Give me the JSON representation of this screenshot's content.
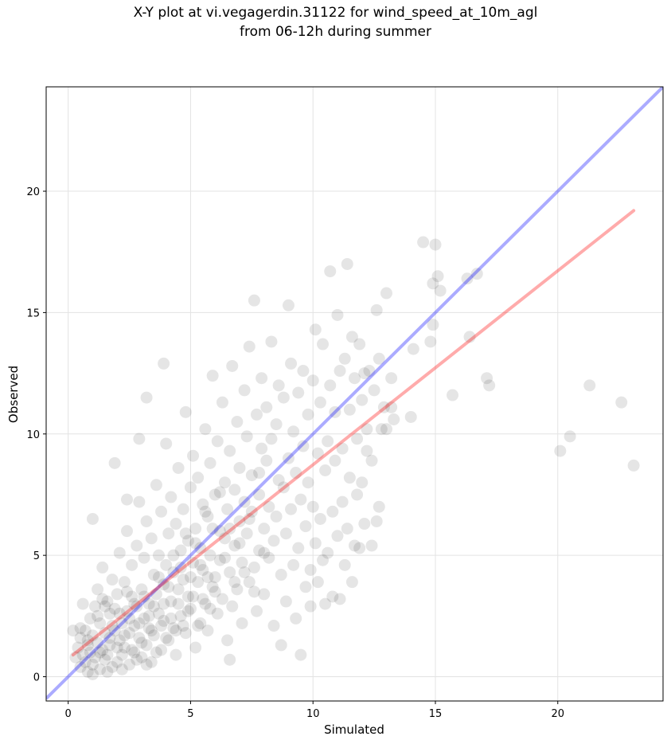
{
  "chart_data": {
    "type": "scatter",
    "title": "X-Y plot at vi.vegagerdin.31122 for wind_speed_at_10m_agl",
    "subtitle": "from 06-12h during summer",
    "xlabel": "Simulated",
    "ylabel": "Observed",
    "xlim": [
      -0.9,
      24.3
    ],
    "ylim": [
      -1.0,
      24.3
    ],
    "x_ticks": [
      0,
      5,
      10,
      15,
      20
    ],
    "y_ticks": [
      0,
      5,
      10,
      15,
      20
    ],
    "grid": true,
    "colors": {
      "points": "#000000",
      "identity_line": "#0000ff",
      "regression_line": "#ff0000"
    },
    "identity_line": {
      "x": [
        -0.9,
        24.3
      ],
      "y": [
        -0.9,
        24.3
      ]
    },
    "regression_line": {
      "x": [
        0.2,
        23.1
      ],
      "y": [
        0.9,
        19.2
      ]
    },
    "points": [
      [
        0.3,
        0.8
      ],
      [
        0.4,
        1.2
      ],
      [
        0.5,
        0.4
      ],
      [
        0.5,
        1.6
      ],
      [
        0.6,
        0.9
      ],
      [
        0.7,
        0.6
      ],
      [
        0.7,
        1.9
      ],
      [
        0.8,
        1.3
      ],
      [
        0.8,
        0.2
      ],
      [
        0.9,
        2.4
      ],
      [
        0.9,
        1.0
      ],
      [
        1.0,
        0.5
      ],
      [
        1.0,
        1.7
      ],
      [
        1.1,
        2.9
      ],
      [
        1.1,
        0.8
      ],
      [
        1.2,
        1.4
      ],
      [
        1.2,
        3.6
      ],
      [
        1.3,
        0.3
      ],
      [
        1.3,
        2.2
      ],
      [
        1.4,
        1.1
      ],
      [
        1.4,
        4.5
      ],
      [
        1.5,
        0.7
      ],
      [
        1.5,
        1.8
      ],
      [
        1.6,
        3.1
      ],
      [
        1.6,
        0.9
      ],
      [
        1.7,
        2.6
      ],
      [
        1.7,
        1.3
      ],
      [
        1.8,
        0.4
      ],
      [
        1.8,
        4.0
      ],
      [
        1.9,
        1.9
      ],
      [
        1.9,
        2.8
      ],
      [
        2.0,
        0.6
      ],
      [
        2.0,
        3.4
      ],
      [
        2.1,
        1.5
      ],
      [
        2.1,
        5.1
      ],
      [
        2.2,
        2.2
      ],
      [
        2.2,
        0.9
      ],
      [
        2.3,
        3.9
      ],
      [
        2.3,
        1.2
      ],
      [
        2.4,
        2.7
      ],
      [
        2.4,
        6.0
      ],
      [
        2.5,
        0.5
      ],
      [
        2.5,
        1.8
      ],
      [
        2.6,
        3.3
      ],
      [
        2.6,
        4.6
      ],
      [
        2.7,
        2.1
      ],
      [
        2.7,
        1.0
      ],
      [
        2.8,
        5.4
      ],
      [
        2.8,
        2.9
      ],
      [
        2.9,
        1.6
      ],
      [
        2.9,
        7.2
      ],
      [
        3.0,
        3.6
      ],
      [
        3.0,
        0.8
      ],
      [
        3.1,
        2.4
      ],
      [
        3.1,
        4.9
      ],
      [
        3.2,
        1.3
      ],
      [
        3.2,
        6.4
      ],
      [
        3.3,
        3.0
      ],
      [
        3.3,
        2.0
      ],
      [
        3.4,
        5.7
      ],
      [
        3.4,
        0.6
      ],
      [
        3.5,
        4.2
      ],
      [
        3.5,
        1.7
      ],
      [
        3.6,
        3.4
      ],
      [
        3.6,
        7.9
      ],
      [
        3.7,
        2.6
      ],
      [
        3.7,
        5.0
      ],
      [
        3.8,
        1.1
      ],
      [
        3.8,
        6.8
      ],
      [
        3.9,
        3.8
      ],
      [
        3.9,
        2.3
      ],
      [
        4.0,
        4.6
      ],
      [
        4.0,
        9.6
      ],
      [
        4.1,
        1.5
      ],
      [
        4.1,
        5.9
      ],
      [
        4.2,
        3.1
      ],
      [
        4.2,
        7.4
      ],
      [
        4.3,
        2.0
      ],
      [
        4.3,
        4.3
      ],
      [
        4.4,
        6.3
      ],
      [
        4.4,
        0.9
      ],
      [
        4.5,
        3.6
      ],
      [
        4.5,
        8.6
      ],
      [
        4.6,
        5.2
      ],
      [
        4.6,
        2.5
      ],
      [
        4.7,
        4.0
      ],
      [
        4.7,
        6.9
      ],
      [
        4.8,
        1.8
      ],
      [
        4.8,
        10.9
      ],
      [
        4.9,
        3.3
      ],
      [
        4.9,
        5.6
      ],
      [
        5.0,
        7.8
      ],
      [
        5.0,
        2.8
      ],
      [
        5.1,
        4.7
      ],
      [
        5.1,
        9.1
      ],
      [
        5.2,
        1.2
      ],
      [
        5.2,
        6.1
      ],
      [
        5.3,
        3.9
      ],
      [
        5.3,
        8.2
      ],
      [
        5.4,
        2.2
      ],
      [
        5.4,
        5.3
      ],
      [
        5.5,
        7.1
      ],
      [
        5.5,
        4.4
      ],
      [
        5.6,
        10.2
      ],
      [
        5.6,
        3.0
      ],
      [
        5.7,
        6.6
      ],
      [
        5.7,
        1.9
      ],
      [
        5.8,
        8.8
      ],
      [
        5.8,
        5.0
      ],
      [
        5.9,
        3.7
      ],
      [
        5.9,
        12.4
      ],
      [
        6.0,
        7.5
      ],
      [
        6.0,
        4.1
      ],
      [
        6.1,
        2.6
      ],
      [
        6.1,
        9.7
      ],
      [
        6.2,
        6.0
      ],
      [
        6.2,
        4.8
      ],
      [
        6.3,
        11.3
      ],
      [
        6.3,
        3.2
      ],
      [
        6.4,
        8.0
      ],
      [
        6.4,
        5.7
      ],
      [
        6.5,
        1.5
      ],
      [
        6.5,
        6.9
      ],
      [
        6.6,
        9.3
      ],
      [
        6.6,
        4.3
      ],
      [
        6.7,
        2.9
      ],
      [
        6.7,
        12.8
      ],
      [
        6.8,
        7.7
      ],
      [
        6.8,
        5.4
      ],
      [
        6.9,
        3.6
      ],
      [
        6.9,
        10.5
      ],
      [
        7.0,
        6.4
      ],
      [
        7.0,
        8.6
      ],
      [
        7.1,
        4.7
      ],
      [
        7.1,
        2.2
      ],
      [
        7.2,
        11.8
      ],
      [
        7.2,
        7.2
      ],
      [
        7.3,
        5.9
      ],
      [
        7.3,
        9.9
      ],
      [
        7.4,
        3.9
      ],
      [
        7.4,
        13.6
      ],
      [
        7.5,
        6.8
      ],
      [
        7.5,
        8.3
      ],
      [
        7.6,
        4.5
      ],
      [
        7.6,
        15.5
      ],
      [
        7.7,
        10.8
      ],
      [
        7.7,
        2.7
      ],
      [
        7.8,
        7.5
      ],
      [
        7.8,
        5.2
      ],
      [
        7.9,
        9.4
      ],
      [
        7.9,
        12.3
      ],
      [
        8.0,
        6.1
      ],
      [
        8.0,
        3.4
      ],
      [
        8.1,
        8.9
      ],
      [
        8.1,
        11.1
      ],
      [
        8.2,
        4.9
      ],
      [
        8.2,
        7.0
      ],
      [
        8.3,
        13.8
      ],
      [
        8.3,
        9.8
      ],
      [
        8.4,
        5.6
      ],
      [
        8.4,
        2.1
      ],
      [
        8.5,
        10.4
      ],
      [
        8.5,
        6.6
      ],
      [
        8.6,
        8.1
      ],
      [
        8.6,
        12.0
      ],
      [
        8.7,
        4.2
      ],
      [
        8.7,
        1.3
      ],
      [
        8.8,
        7.8
      ],
      [
        8.8,
        11.5
      ],
      [
        8.9,
        3.1
      ],
      [
        8.9,
        5.9
      ],
      [
        9.0,
        9.0
      ],
      [
        9.0,
        15.3
      ],
      [
        9.1,
        6.9
      ],
      [
        9.1,
        12.9
      ],
      [
        9.2,
        4.6
      ],
      [
        9.2,
        10.1
      ],
      [
        9.3,
        8.4
      ],
      [
        9.3,
        2.4
      ],
      [
        9.4,
        11.7
      ],
      [
        9.4,
        5.3
      ],
      [
        9.5,
        7.3
      ],
      [
        9.5,
        0.9
      ],
      [
        9.6,
        9.5
      ],
      [
        9.6,
        12.6
      ],
      [
        9.7,
        6.2
      ],
      [
        9.7,
        3.7
      ],
      [
        9.8,
        10.8
      ],
      [
        9.8,
        8.0
      ],
      [
        9.9,
        4.4
      ],
      [
        9.9,
        2.9
      ],
      [
        10.0,
        12.2
      ],
      [
        10.0,
        7.0
      ],
      [
        10.1,
        5.5
      ],
      [
        10.1,
        14.3
      ],
      [
        10.2,
        9.2
      ],
      [
        10.2,
        3.9
      ],
      [
        10.3,
        6.5
      ],
      [
        10.3,
        11.3
      ],
      [
        10.4,
        4.8
      ],
      [
        10.4,
        13.7
      ],
      [
        10.5,
        8.5
      ],
      [
        10.5,
        3.0
      ],
      [
        10.6,
        9.7
      ],
      [
        10.6,
        5.1
      ],
      [
        10.7,
        16.7
      ],
      [
        10.7,
        12.0
      ],
      [
        10.8,
        3.3
      ],
      [
        10.8,
        6.8
      ],
      [
        10.9,
        10.9
      ],
      [
        10.9,
        8.9
      ],
      [
        11.0,
        14.9
      ],
      [
        11.0,
        5.8
      ],
      [
        11.1,
        3.2
      ],
      [
        11.1,
        12.6
      ],
      [
        11.2,
        7.2
      ],
      [
        11.2,
        9.4
      ],
      [
        11.3,
        4.6
      ],
      [
        11.3,
        13.1
      ],
      [
        11.4,
        17.0
      ],
      [
        11.4,
        6.1
      ],
      [
        11.5,
        11.0
      ],
      [
        11.5,
        8.2
      ],
      [
        11.6,
        3.9
      ],
      [
        11.6,
        14.0
      ],
      [
        11.7,
        5.4
      ],
      [
        11.7,
        12.3
      ],
      [
        11.8,
        9.8
      ],
      [
        11.8,
        7.5
      ],
      [
        11.9,
        13.7
      ],
      [
        11.9,
        5.3
      ],
      [
        12.0,
        11.4
      ],
      [
        12.0,
        8.0
      ],
      [
        12.1,
        12.5
      ],
      [
        12.1,
        6.3
      ],
      [
        12.2,
        10.2
      ],
      [
        12.2,
        9.3
      ],
      [
        12.3,
        12.6
      ],
      [
        12.4,
        5.4
      ],
      [
        12.4,
        8.9
      ],
      [
        12.5,
        11.8
      ],
      [
        12.6,
        15.1
      ],
      [
        12.6,
        6.4
      ],
      [
        12.7,
        13.1
      ],
      [
        12.7,
        7.0
      ],
      [
        12.8,
        10.2
      ],
      [
        12.9,
        11.1
      ],
      [
        13.0,
        15.8
      ],
      [
        13.0,
        10.2
      ],
      [
        13.2,
        12.3
      ],
      [
        13.2,
        11.1
      ],
      [
        13.3,
        10.6
      ],
      [
        14.0,
        10.7
      ],
      [
        14.1,
        13.5
      ],
      [
        14.5,
        17.9
      ],
      [
        14.8,
        13.8
      ],
      [
        14.9,
        16.2
      ],
      [
        14.9,
        14.5
      ],
      [
        15.0,
        17.8
      ],
      [
        15.1,
        16.5
      ],
      [
        15.2,
        15.9
      ],
      [
        15.7,
        11.6
      ],
      [
        16.3,
        16.4
      ],
      [
        16.4,
        14.0
      ],
      [
        16.7,
        16.6
      ],
      [
        17.1,
        12.3
      ],
      [
        17.2,
        12.0
      ],
      [
        20.1,
        9.3
      ],
      [
        20.5,
        9.9
      ],
      [
        21.3,
        12.0
      ],
      [
        22.6,
        11.3
      ],
      [
        23.1,
        8.7
      ],
      [
        0.5,
        2.0
      ],
      [
        0.8,
        1.5
      ],
      [
        1.0,
        0.1
      ],
      [
        1.2,
        2.5
      ],
      [
        1.3,
        1.0
      ],
      [
        1.5,
        2.9
      ],
      [
        1.6,
        0.2
      ],
      [
        1.7,
        1.6
      ],
      [
        1.8,
        2.1
      ],
      [
        2.0,
        1.2
      ],
      [
        2.1,
        2.6
      ],
      [
        2.2,
        0.3
      ],
      [
        2.3,
        1.7
      ],
      [
        2.4,
        3.5
      ],
      [
        2.5,
        2.4
      ],
      [
        2.6,
        1.1
      ],
      [
        2.7,
        3.0
      ],
      [
        2.8,
        0.7
      ],
      [
        2.9,
        2.2
      ],
      [
        3.0,
        1.4
      ],
      [
        3.1,
        3.3
      ],
      [
        3.2,
        0.5
      ],
      [
        3.3,
        2.5
      ],
      [
        3.4,
        1.9
      ],
      [
        3.5,
        2.9
      ],
      [
        3.6,
        1.0
      ],
      [
        3.7,
        4.1
      ],
      [
        3.8,
        2.1
      ],
      [
        3.9,
        3.0
      ],
      [
        4.0,
        1.6
      ],
      [
        4.1,
        3.7
      ],
      [
        4.2,
        2.4
      ],
      [
        4.3,
        5.0
      ],
      [
        4.4,
        1.9
      ],
      [
        4.5,
        3.0
      ],
      [
        4.6,
        4.5
      ],
      [
        4.7,
        2.1
      ],
      [
        4.8,
        5.9
      ],
      [
        4.9,
        2.7
      ],
      [
        5.0,
        4.1
      ],
      [
        5.1,
        3.3
      ],
      [
        5.2,
        5.5
      ],
      [
        5.3,
        2.1
      ],
      [
        5.4,
        4.6
      ],
      [
        5.5,
        3.2
      ],
      [
        5.6,
        6.8
      ],
      [
        5.7,
        4.1
      ],
      [
        5.8,
        2.8
      ],
      [
        5.9,
        6.1
      ],
      [
        6.0,
        3.5
      ],
      [
        6.2,
        7.6
      ],
      [
        6.4,
        4.9
      ],
      [
        6.6,
        6.1
      ],
      [
        6.8,
        3.9
      ],
      [
        7.0,
        5.5
      ],
      [
        7.2,
        4.3
      ],
      [
        7.4,
        6.5
      ],
      [
        7.6,
        3.5
      ],
      [
        7.8,
        8.4
      ],
      [
        8.0,
        5.1
      ],
      [
        0.2,
        1.9
      ],
      [
        0.6,
        3.0
      ],
      [
        1.0,
        6.5
      ],
      [
        1.4,
        3.2
      ],
      [
        1.9,
        8.8
      ],
      [
        2.4,
        7.3
      ],
      [
        2.9,
        9.8
      ],
      [
        3.2,
        11.5
      ],
      [
        3.9,
        12.9
      ],
      [
        6.6,
        0.7
      ]
    ]
  }
}
